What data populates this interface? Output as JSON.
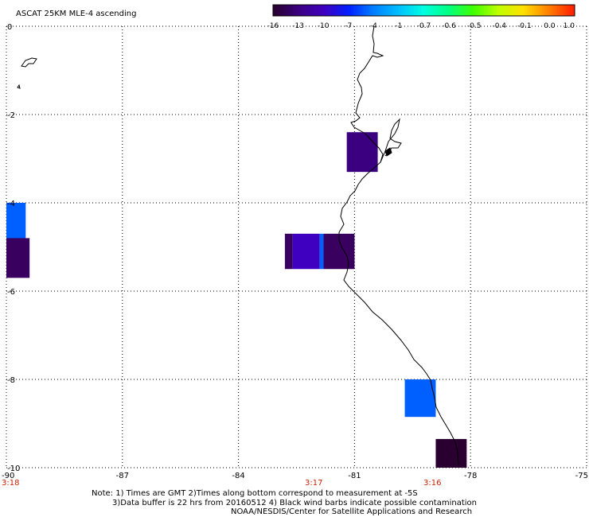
{
  "title": "ASCAT 25KM MLE-4 ascending",
  "colorbar": {
    "labels": [
      "-16",
      "-13",
      "-10",
      "-7",
      "-4",
      "-1",
      "-0.7",
      "-0.6",
      "-0.5",
      "-0.4",
      "-0.1",
      "0.0",
      "1.0"
    ],
    "colors": [
      "#2a0030",
      "#3a0080",
      "#4000c0",
      "#0020ff",
      "#0080ff",
      "#00c0ff",
      "#00ffe0",
      "#00ff80",
      "#40ff00",
      "#c0ff00",
      "#ffe000",
      "#ff8000",
      "#ff2000"
    ]
  },
  "axes": {
    "lat_labels": [
      "0",
      "-2",
      "-4",
      "-6",
      "-8",
      "-10"
    ],
    "lon_labels": [
      "-90",
      "-87",
      "-84",
      "-81",
      "-78",
      "-75"
    ]
  },
  "times": [
    "3:18",
    "3:17",
    "3:16"
  ],
  "notes": {
    "line1": "Note: 1) Times are GMT 2)Times along bottom correspond to measurement at -5S",
    "line2": "3)Data buffer is 22 hrs from 20160512 4) Black wind barbs indicate possible contamination",
    "line3": "NOAA/NESDIS/Center for Satellite Applications and Research"
  },
  "cells": [
    {
      "lon0": -81.2,
      "lon1": -80.4,
      "lat0": -2.4,
      "lat1": -3.3,
      "color": "#3a0080"
    },
    {
      "lon0": -90.0,
      "lon1": -89.5,
      "lat0": -4.0,
      "lat1": -4.9,
      "color": "#0060ff"
    },
    {
      "lon0": -90.0,
      "lon1": -89.4,
      "lat0": -4.8,
      "lat1": -5.7,
      "color": "#3a0060"
    },
    {
      "lon0": -82.8,
      "lon1": -82.6,
      "lat0": -4.7,
      "lat1": -5.5,
      "color": "#3a0060"
    },
    {
      "lon0": -82.6,
      "lon1": -81.9,
      "lat0": -4.7,
      "lat1": -5.5,
      "color": "#4000c0"
    },
    {
      "lon0": -81.9,
      "lon1": -81.8,
      "lat0": -4.7,
      "lat1": -5.5,
      "color": "#0060ff"
    },
    {
      "lon0": -81.8,
      "lon1": -81.0,
      "lat0": -4.7,
      "lat1": -5.5,
      "color": "#3a0060"
    },
    {
      "lon0": -79.7,
      "lon1": -78.9,
      "lat0": -8.0,
      "lat1": -8.85,
      "color": "#0060ff"
    },
    {
      "lon0": -78.9,
      "lon1": -78.1,
      "lat0": -9.35,
      "lat1": -10.0,
      "color": "#2a0030"
    }
  ]
}
